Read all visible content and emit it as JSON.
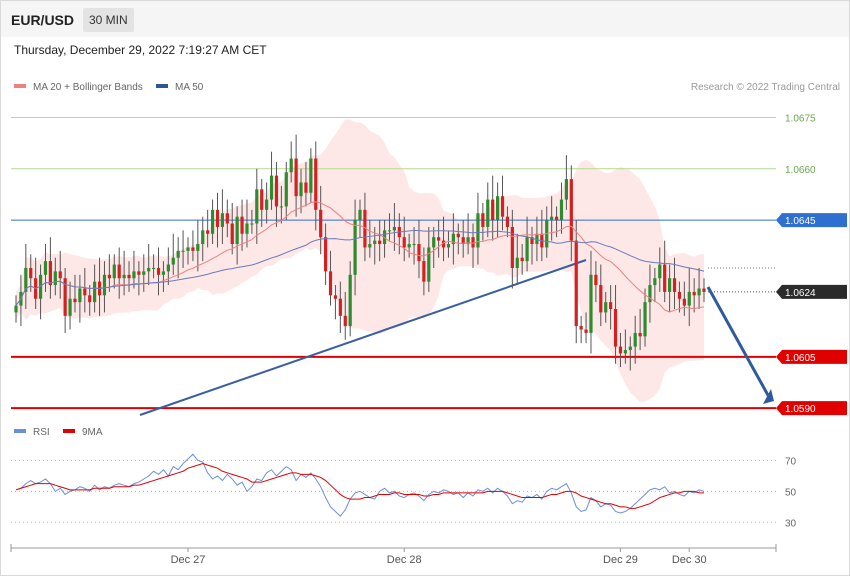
{
  "header": {
    "pair": "EUR/USD",
    "timeframe": "30 MIN",
    "datetime": "Thursday, December 29, 2022 7:19:27 AM CET"
  },
  "legend": {
    "ma20": "MA 20 + Bollinger Bands",
    "ma50": "MA 50",
    "credit": "Research © 2022 Trading Central"
  },
  "rsi_legend": {
    "rsi": "RSI",
    "ma9": "9MA"
  },
  "colors": {
    "up": "#2e8b2e",
    "down": "#d32020",
    "ma20": "#f08080",
    "band": "#fde3e3",
    "ma50": "#6a7bb8",
    "trend": "#3a5f9e",
    "support": "#e00000",
    "resistance_green": "#b6d98f",
    "resistance_blue": "#2f6fd0",
    "current": "#2b2b2b",
    "rsi": "#6b8fdc",
    "rsi_ma": "#e00000"
  },
  "chart_data": [
    {
      "type": "candlestick",
      "ylim": [
        1.0588,
        1.0681
      ],
      "levels": [
        {
          "value": 1.0675,
          "label": "1.0675",
          "kind": "resistance_green"
        },
        {
          "value": 1.066,
          "label": "1.0660",
          "kind": "resistance_green"
        },
        {
          "value": 1.0645,
          "label": "1.0645",
          "kind": "resistance_blue"
        },
        {
          "value": 1.0624,
          "label": "1.0624",
          "kind": "current"
        },
        {
          "value": 1.0605,
          "label": "1.0605",
          "kind": "support"
        },
        {
          "value": 1.059,
          "label": "1.0590",
          "kind": "support"
        }
      ],
      "xticks": [
        {
          "index": 35,
          "label": "Dec 27"
        },
        {
          "index": 79,
          "label": "Dec 28"
        },
        {
          "index": 123,
          "label": "Dec 29"
        },
        {
          "index": 137,
          "label": "Dec 30"
        }
      ],
      "close": [
        1.062,
        1.0624,
        1.0631,
        1.0628,
        1.0622,
        1.0629,
        1.0633,
        1.0626,
        1.063,
        1.0628,
        1.0617,
        1.0622,
        1.0621,
        1.0625,
        1.0623,
        1.0621,
        1.0627,
        1.0623,
        1.0629,
        1.0628,
        1.0632,
        1.0628,
        1.0629,
        1.0628,
        1.063,
        1.0629,
        1.063,
        1.0631,
        1.0631,
        1.0629,
        1.063,
        1.0632,
        1.0634,
        1.0636,
        1.0636,
        1.0637,
        1.0636,
        1.0638,
        1.0642,
        1.0641,
        1.0648,
        1.0643,
        1.0647,
        1.0644,
        1.0638,
        1.0646,
        1.0641,
        1.0644,
        1.0644,
        1.0654,
        1.0648,
        1.0651,
        1.0658,
        1.0649,
        1.0649,
        1.0659,
        1.0663,
        1.0652,
        1.0656,
        1.0653,
        1.0663,
        1.0648,
        1.064,
        1.063,
        1.0623,
        1.0622,
        1.0617,
        1.0614,
        1.0629,
        1.0645,
        1.0648,
        1.0637,
        1.0638,
        1.0639,
        1.0638,
        1.0642,
        1.0642,
        1.0643,
        1.064,
        1.0637,
        1.0638,
        1.0638,
        1.0633,
        1.0627,
        1.0637,
        1.064,
        1.0639,
        1.0637,
        1.0638,
        1.0641,
        1.064,
        1.0638,
        1.064,
        1.0637,
        1.0647,
        1.0643,
        1.0651,
        1.0645,
        1.0652,
        1.0646,
        1.0643,
        1.0631,
        1.0634,
        1.0633,
        1.064,
        1.0638,
        1.0641,
        1.0637,
        1.0645,
        1.0646,
        1.0645,
        1.0651,
        1.0657,
        1.0639,
        1.0614,
        1.0613,
        1.0612,
        1.0629,
        1.0626,
        1.0618,
        1.0621,
        1.0619,
        1.0608,
        1.0606,
        1.0607,
        1.0608,
        1.0612,
        1.0611,
        1.0621,
        1.0626,
        1.0628,
        1.0632,
        1.0624,
        1.0628,
        1.0624,
        1.0622,
        1.062,
        1.0624,
        1.0623,
        1.0625,
        1.0624
      ],
      "series": [
        {
          "name": "MA 20 + Bollinger Bands"
        },
        {
          "name": "MA 50"
        }
      ]
    },
    {
      "type": "line",
      "ylim": [
        25,
        80
      ],
      "yticks": [
        70,
        50,
        30
      ],
      "ticklabels": [
        "70",
        "50",
        "30"
      ],
      "series": [
        {
          "name": "RSI",
          "values": [
            51,
            52,
            55,
            57,
            55,
            56,
            58,
            55,
            50,
            52,
            48,
            50,
            51,
            53,
            52,
            50,
            54,
            51,
            53,
            52,
            54,
            55,
            54,
            53,
            55,
            56,
            58,
            60,
            63,
            61,
            64,
            60,
            66,
            64,
            68,
            71,
            74,
            70,
            69,
            62,
            58,
            60,
            57,
            61,
            58,
            54,
            56,
            50,
            53,
            58,
            57,
            62,
            64,
            60,
            63,
            66,
            64,
            57,
            61,
            59,
            62,
            58,
            53,
            46,
            40,
            37,
            34,
            38,
            45,
            49,
            50,
            48,
            46,
            45,
            50,
            52,
            49,
            50,
            47,
            46,
            48,
            49,
            47,
            44,
            48,
            50,
            49,
            51,
            50,
            48,
            49,
            46,
            49,
            47,
            51,
            50,
            52,
            49,
            52,
            50,
            47,
            42,
            44,
            43,
            47,
            46,
            48,
            45,
            50,
            52,
            51,
            53,
            55,
            49,
            40,
            37,
            38,
            46,
            44,
            40,
            42,
            41,
            37,
            36,
            37,
            39,
            42,
            45,
            48,
            51,
            52,
            51,
            53,
            49,
            50,
            48,
            47,
            50,
            49,
            51,
            50
          ]
        },
        {
          "name": "9MA",
          "values": [
            51,
            52,
            53,
            54,
            55,
            55,
            55,
            55,
            54,
            53,
            52,
            51,
            51,
            51,
            51,
            51,
            52,
            52,
            52,
            52,
            53,
            53,
            53,
            53,
            54,
            54,
            55,
            56,
            57,
            58,
            59,
            60,
            61,
            62,
            63,
            65,
            66,
            67,
            68,
            67,
            66,
            65,
            63,
            62,
            61,
            60,
            59,
            58,
            56,
            56,
            56,
            57,
            58,
            59,
            60,
            61,
            62,
            62,
            61,
            61,
            61,
            60,
            59,
            57,
            54,
            51,
            48,
            46,
            45,
            45,
            45,
            46,
            46,
            47,
            48,
            48,
            48,
            49,
            49,
            48,
            48,
            48,
            48,
            47,
            47,
            48,
            48,
            49,
            49,
            49,
            49,
            49,
            49,
            49,
            49,
            49,
            50,
            50,
            50,
            50,
            49,
            48,
            47,
            46,
            46,
            46,
            46,
            46,
            47,
            48,
            48,
            49,
            50,
            50,
            49,
            47,
            46,
            45,
            44,
            43,
            42,
            42,
            41,
            40,
            40,
            39,
            39,
            40,
            41,
            42,
            44,
            46,
            47,
            48,
            49,
            49,
            50,
            50,
            50,
            49,
            49
          ]
        }
      ]
    }
  ]
}
